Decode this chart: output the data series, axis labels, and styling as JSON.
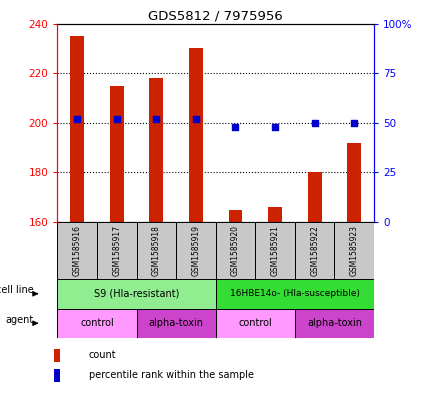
{
  "title": "GDS5812 / 7975956",
  "samples": [
    "GSM1585916",
    "GSM1585917",
    "GSM1585918",
    "GSM1585919",
    "GSM1585920",
    "GSM1585921",
    "GSM1585922",
    "GSM1585923"
  ],
  "count_values": [
    235,
    215,
    218,
    230,
    165,
    166,
    180,
    192
  ],
  "percentile_values": [
    52,
    52,
    52,
    52,
    48,
    48,
    50,
    50
  ],
  "ylim_left": [
    160,
    240
  ],
  "ylim_right": [
    0,
    100
  ],
  "yticks_left": [
    160,
    180,
    200,
    220,
    240
  ],
  "yticks_right": [
    0,
    25,
    50,
    75,
    100
  ],
  "yticklabels_right": [
    "0",
    "25",
    "50",
    "75",
    "100%"
  ],
  "bar_color": "#CC2200",
  "dot_color": "#0000CC",
  "bar_width": 0.35,
  "dot_size": 25,
  "cell_line_s9_color": "#90EE90",
  "cell_line_16hbe_color": "#33DD33",
  "agent_control_color": "#FF99FF",
  "agent_toxin_color": "#CC44CC",
  "sample_box_color": "#C8C8C8",
  "legend_count_label": "count",
  "legend_percentile_label": "percentile rank within the sample",
  "cell_line_row_label": "cell line",
  "agent_row_label": "agent"
}
